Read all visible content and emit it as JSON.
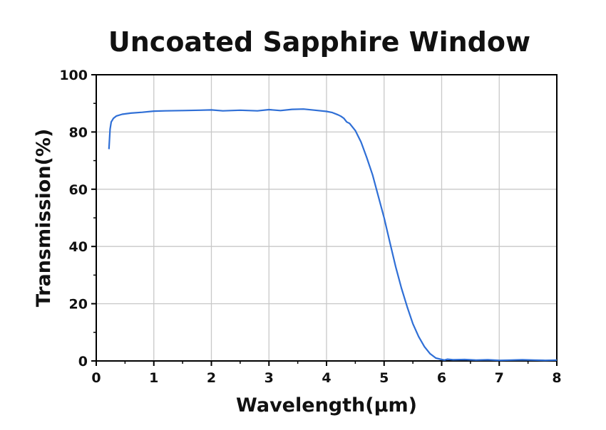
{
  "chart_data": {
    "type": "line",
    "title": "Uncoated Sapphire Window",
    "xlabel": "Wavelength(μm)",
    "ylabel": "Transmission(%)",
    "xlim": [
      0,
      8
    ],
    "ylim": [
      0,
      100
    ],
    "x_ticks": [
      "0",
      "1",
      "2",
      "3",
      "4",
      "5",
      "6",
      "7",
      "8"
    ],
    "y_ticks": [
      "0",
      "20",
      "40",
      "60",
      "80",
      "100"
    ],
    "grid": true,
    "line_color": "#2f6fd6",
    "series": [
      {
        "x": [
          0.22,
          0.24,
          0.26,
          0.3,
          0.35,
          0.45,
          0.6,
          0.8,
          1.0,
          1.2,
          1.5,
          1.8,
          2.0,
          2.2,
          2.5,
          2.8,
          3.0,
          3.2,
          3.4,
          3.6,
          3.8,
          4.0,
          4.1,
          4.2,
          4.25,
          4.3,
          4.35,
          4.4,
          4.5,
          4.6,
          4.7,
          4.8,
          4.9,
          5.0,
          5.1,
          5.2,
          5.3,
          5.4,
          5.5,
          5.6,
          5.7,
          5.8,
          5.9,
          6.0,
          6.05,
          6.1,
          6.2,
          6.4,
          6.6,
          6.8,
          7.0,
          7.2,
          7.4,
          7.6,
          7.8,
          8.0
        ],
        "y": [
          74,
          81,
          83.5,
          84.8,
          85.6,
          86.2,
          86.6,
          86.9,
          87.3,
          87.4,
          87.5,
          87.6,
          87.7,
          87.4,
          87.6,
          87.4,
          87.8,
          87.5,
          87.9,
          88.0,
          87.6,
          87.2,
          86.8,
          86.0,
          85.5,
          84.8,
          83.5,
          83.0,
          80.5,
          76.5,
          71.0,
          65.0,
          57.5,
          50.0,
          41.5,
          33.0,
          25.5,
          19.0,
          13.0,
          8.5,
          5.0,
          2.5,
          1.0,
          0.5,
          0.3,
          0.6,
          0.4,
          0.5,
          0.3,
          0.4,
          0.2,
          0.3,
          0.4,
          0.3,
          0.2,
          0.3
        ]
      }
    ]
  }
}
